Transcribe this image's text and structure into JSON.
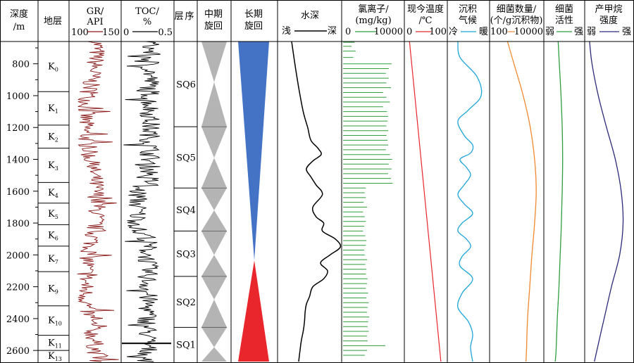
{
  "chart_data": {
    "type": "composite-log",
    "depth_axis": {
      "label_line1": "深度",
      "label_line2": "/m",
      "range": [
        660,
        2670
      ],
      "ticks": [
        800,
        1000,
        1200,
        1400,
        1600,
        1800,
        2000,
        2200,
        2400,
        2600
      ]
    },
    "columns": {
      "strata": {
        "title": "地层"
      },
      "gr": {
        "title_line1": "GR/",
        "title_line2": "API",
        "min_label": "100",
        "max_label": "150",
        "range": [
          100,
          150
        ],
        "color": "#8b1a1a"
      },
      "toc": {
        "title_line1": "TOC/",
        "title_line2": "%",
        "min_label": "0",
        "max_label": "0.5",
        "range": [
          0,
          0.5
        ],
        "color": "#000000"
      },
      "sequence": {
        "title_line1": "层",
        "title_line2": "序"
      },
      "mid_cycle": {
        "title_line1": "中期",
        "title_line2": "旋回",
        "color": "#b4b4b4"
      },
      "long_cycle": {
        "title_line1": "长期",
        "title_line2": "旋回",
        "upper_color": "#4472c4",
        "lower_color": "#e8262c"
      },
      "water": {
        "title": "水深",
        "left_label": "浅",
        "right_label": "深",
        "color": "#000000"
      },
      "chloride": {
        "title_line1": "氯离子/",
        "title_line2": "(mg/kg)",
        "min_label": "0",
        "max_label": "10000",
        "color": "#2e9e3e"
      },
      "temp": {
        "title_line1": "现今温度",
        "title_line2": "/℃",
        "min_label": "0",
        "max_label": "100",
        "color": "#e8262c"
      },
      "climate": {
        "title_line1": "沉积",
        "title_line2": "气候",
        "left_label": "冷",
        "right_label": "暖",
        "color": "#1ea5d8"
      },
      "bacteria_count": {
        "title_line1": "细菌数量/",
        "title_line2": "(个/g沉积物)",
        "min_label": "100",
        "max_label": "10000",
        "color": "#f0882e"
      },
      "bacteria_activity": {
        "title_line1": "细菌",
        "title_line2": "活性",
        "left_label": "弱",
        "right_label": "强",
        "color": "#2e9e3e"
      },
      "methane": {
        "title_line1": "产甲烷",
        "title_line2": "强度",
        "left_label": "弱",
        "right_label": "强",
        "color": "#2b2a7a"
      }
    },
    "strata": [
      {
        "main": "K",
        "sub": "0",
        "top": 660,
        "bottom": 975
      },
      {
        "main": "K",
        "sub": "1",
        "top": 975,
        "bottom": 1185
      },
      {
        "main": "K",
        "sub": "2",
        "top": 1185,
        "bottom": 1330
      },
      {
        "main": "K",
        "sub": "3",
        "top": 1330,
        "bottom": 1545
      },
      {
        "main": "K",
        "sub": "4",
        "top": 1545,
        "bottom": 1675
      },
      {
        "main": "K",
        "sub": "5",
        "top": 1675,
        "bottom": 1810
      },
      {
        "main": "K",
        "sub": "6",
        "top": 1810,
        "bottom": 1945
      },
      {
        "main": "K",
        "sub": "7",
        "top": 1945,
        "bottom": 2105
      },
      {
        "main": "K",
        "sub": "9",
        "top": 2105,
        "bottom": 2320
      },
      {
        "main": "K",
        "sub": "10",
        "top": 2320,
        "bottom": 2505
      },
      {
        "main": "K",
        "sub": "11",
        "top": 2505,
        "bottom": 2600
      },
      {
        "main": "K",
        "sub": "13",
        "top": 2600,
        "bottom": 2670
      }
    ],
    "sequences": [
      {
        "label": "SQ6",
        "top": 660,
        "bottom": 1195
      },
      {
        "label": "SQ5",
        "top": 1195,
        "bottom": 1580
      },
      {
        "label": "SQ4",
        "top": 1580,
        "bottom": 1850
      },
      {
        "label": "SQ3",
        "top": 1850,
        "bottom": 2135
      },
      {
        "label": "SQ2",
        "top": 2135,
        "bottom": 2455
      },
      {
        "label": "SQ1",
        "top": 2455,
        "bottom": 2670
      }
    ],
    "mid_cycle_pinches": [
      660,
      915,
      1195,
      1390,
      1580,
      1720,
      1850,
      2000,
      2135,
      2280,
      2455,
      2580,
      2670
    ],
    "long_cycle": {
      "top": 660,
      "apex": 2035,
      "bottom": 2670
    },
    "water_depth": {
      "depth": [
        660,
        800,
        950,
        1100,
        1200,
        1280,
        1330,
        1370,
        1410,
        1460,
        1510,
        1560,
        1620,
        1700,
        1760,
        1800,
        1850,
        1900,
        1950,
        2000,
        2050,
        2100,
        2150,
        2200,
        2260,
        2310,
        2360,
        2420,
        2480,
        2540,
        2600,
        2670
      ],
      "value": [
        0.22,
        0.27,
        0.33,
        0.4,
        0.47,
        0.52,
        0.63,
        0.68,
        0.55,
        0.45,
        0.52,
        0.6,
        0.7,
        0.55,
        0.6,
        0.72,
        0.7,
        0.9,
        0.98,
        0.82,
        0.67,
        0.78,
        0.72,
        0.55,
        0.5,
        0.45,
        0.43,
        0.42,
        0.4,
        0.37,
        0.35,
        0.33
      ]
    },
    "chloride_mg_per_kg": {
      "depth": [
        665,
        690,
        720,
        760,
        800,
        830,
        860,
        890,
        920,
        950,
        980,
        1010,
        1040,
        1070,
        1100,
        1130,
        1160,
        1190,
        1220,
        1250,
        1280,
        1310,
        1340,
        1370,
        1400,
        1430,
        1460,
        1490,
        1520,
        1550,
        1580,
        1610,
        1640,
        1670,
        1700,
        1730,
        1760,
        1790,
        1820,
        1850,
        1880,
        1910,
        1940,
        1970,
        2000,
        2030,
        2060,
        2090,
        2120,
        2150,
        2180,
        2210,
        2240,
        2270,
        2300,
        2330,
        2360,
        2390,
        2420,
        2450,
        2480,
        2510,
        2540,
        2570,
        2600,
        2630
      ],
      "value": [
        2000,
        1500,
        2200,
        1800,
        8500,
        8000,
        7500,
        8000,
        7600,
        8400,
        7000,
        7600,
        8200,
        7000,
        7700,
        7900,
        7800,
        7600,
        7900,
        7600,
        7800,
        7900,
        7500,
        8200,
        8600,
        8000,
        8500,
        7900,
        8400,
        8700,
        4000,
        3800,
        4000,
        3600,
        4200,
        3500,
        3800,
        4000,
        3700,
        3500,
        3900,
        4100,
        4000,
        3700,
        3800,
        4200,
        3900,
        4100,
        4000,
        4300,
        4200,
        4000,
        4400,
        4100,
        4500,
        4300,
        4200,
        4600,
        4400,
        4300,
        4500,
        4200,
        4300,
        7400,
        4200,
        3800
      ]
    },
    "temperature_c": {
      "depth": [
        660,
        2670
      ],
      "value": [
        12,
        85
      ]
    },
    "climate": {
      "depth": [
        660,
        760,
        880,
        1000,
        1090,
        1160,
        1250,
        1310,
        1360,
        1400,
        1450,
        1500,
        1560,
        1620,
        1680,
        1740,
        1800,
        1850,
        1900,
        1950,
        2010,
        2070,
        2150,
        2240,
        2330,
        2420,
        2500,
        2580,
        2670
      ],
      "value": [
        0.25,
        0.3,
        0.7,
        0.8,
        0.5,
        0.25,
        0.4,
        0.6,
        0.55,
        0.3,
        0.45,
        0.55,
        0.4,
        0.25,
        0.4,
        0.6,
        0.35,
        0.25,
        0.45,
        0.55,
        0.35,
        0.3,
        0.6,
        0.35,
        0.25,
        0.5,
        0.6,
        0.55,
        0.6
      ]
    },
    "bacteria_count": {
      "depth": [
        660,
        800,
        1000,
        1200,
        1400,
        1600,
        1800,
        2000,
        2200,
        2400,
        2600,
        2670
      ],
      "value": [
        0.33,
        0.45,
        0.62,
        0.75,
        0.83,
        0.86,
        0.83,
        0.78,
        0.74,
        0.7,
        0.68,
        0.67
      ]
    },
    "bacteria_activity": {
      "depth": [
        660,
        800,
        1000,
        1200,
        1400,
        1600,
        1800,
        2000,
        2200,
        2400,
        2600,
        2670
      ],
      "value": [
        0.35,
        0.38,
        0.42,
        0.45,
        0.46,
        0.45,
        0.43,
        0.4,
        0.37,
        0.33,
        0.3,
        0.28
      ]
    },
    "methane_intensity": {
      "depth": [
        660,
        800,
        1000,
        1200,
        1400,
        1600,
        1800,
        2000,
        2200,
        2400,
        2600,
        2670
      ],
      "value": [
        0.1,
        0.15,
        0.28,
        0.45,
        0.63,
        0.75,
        0.79,
        0.72,
        0.55,
        0.4,
        0.25,
        0.2
      ]
    }
  }
}
